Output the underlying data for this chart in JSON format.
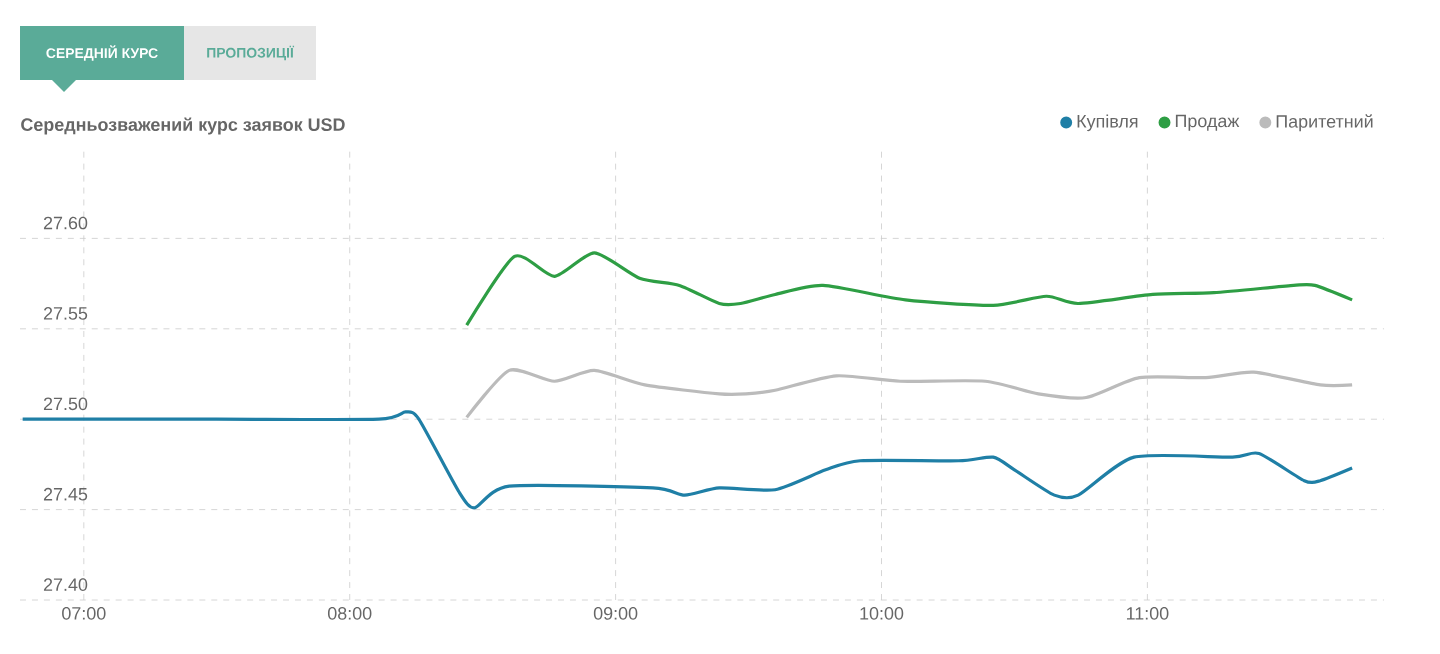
{
  "chart_data": {
    "type": "line",
    "title": "Середньозважений курс заявок USD",
    "annotations": [
      "СЕРЕДНІЙ КУРС",
      "ПРОПОЗИЦІЇ"
    ],
    "xlim": [
      6.76,
      11.89
    ],
    "ylim": [
      27.4,
      27.65
    ],
    "xticks": [
      {
        "value": 7,
        "label": "07:00"
      },
      {
        "value": 8,
        "label": "08:00"
      },
      {
        "value": 9,
        "label": "09:00"
      },
      {
        "value": 10,
        "label": "10:00"
      },
      {
        "value": 11,
        "label": "11:00"
      }
    ],
    "yticks": [
      {
        "value": 27.4,
        "label": "27.40"
      },
      {
        "value": 27.45,
        "label": "27.45"
      },
      {
        "value": 27.5,
        "label": "27.50"
      },
      {
        "value": 27.55,
        "label": "27.55"
      },
      {
        "value": 27.6,
        "label": "27.60"
      }
    ],
    "grid": true,
    "legend": "top right",
    "marker": "none",
    "line_style": "solid",
    "series": [
      {
        "name": "Купівля",
        "color": "#1f7fa6",
        "x": [
          6.77,
          7.5,
          8.11,
          8.21,
          8.26,
          8.41,
          8.47,
          8.6,
          9.14,
          9.26,
          9.39,
          9.6,
          9.79,
          9.92,
          10.29,
          10.42,
          10.5,
          10.65,
          10.74,
          10.95,
          11.32,
          11.42,
          11.59,
          11.65,
          11.77
        ],
        "values": [
          27.5,
          27.5,
          27.5,
          27.504,
          27.5,
          27.46,
          27.451,
          27.463,
          27.462,
          27.458,
          27.462,
          27.461,
          27.472,
          27.477,
          27.477,
          27.479,
          27.472,
          27.458,
          27.458,
          27.479,
          27.479,
          27.481,
          27.466,
          27.466,
          27.473
        ]
      },
      {
        "name": "Продаж",
        "color": "#2e9e44",
        "x": [
          8.44,
          8.62,
          8.77,
          8.92,
          9.09,
          9.24,
          9.39,
          9.47,
          9.6,
          9.78,
          10.09,
          10.42,
          10.62,
          10.74,
          11.02,
          11.25,
          11.55,
          11.63,
          11.77
        ],
        "values": [
          27.552,
          27.59,
          27.579,
          27.592,
          27.578,
          27.574,
          27.564,
          27.564,
          27.569,
          27.574,
          27.566,
          27.563,
          27.568,
          27.564,
          27.569,
          27.57,
          27.574,
          27.574,
          27.566
        ]
      },
      {
        "name": "Паритетний",
        "color": "#bbbbbb",
        "x": [
          8.44,
          8.6,
          8.77,
          8.92,
          9.11,
          9.39,
          9.49,
          9.6,
          9.83,
          10.07,
          10.39,
          10.59,
          10.77,
          10.97,
          11.22,
          11.4,
          11.65,
          11.77
        ],
        "values": [
          27.501,
          27.527,
          27.521,
          27.527,
          27.519,
          27.514,
          27.514,
          27.516,
          27.524,
          27.521,
          27.521,
          27.514,
          27.512,
          27.523,
          27.523,
          27.526,
          27.519,
          27.519
        ]
      }
    ]
  }
}
